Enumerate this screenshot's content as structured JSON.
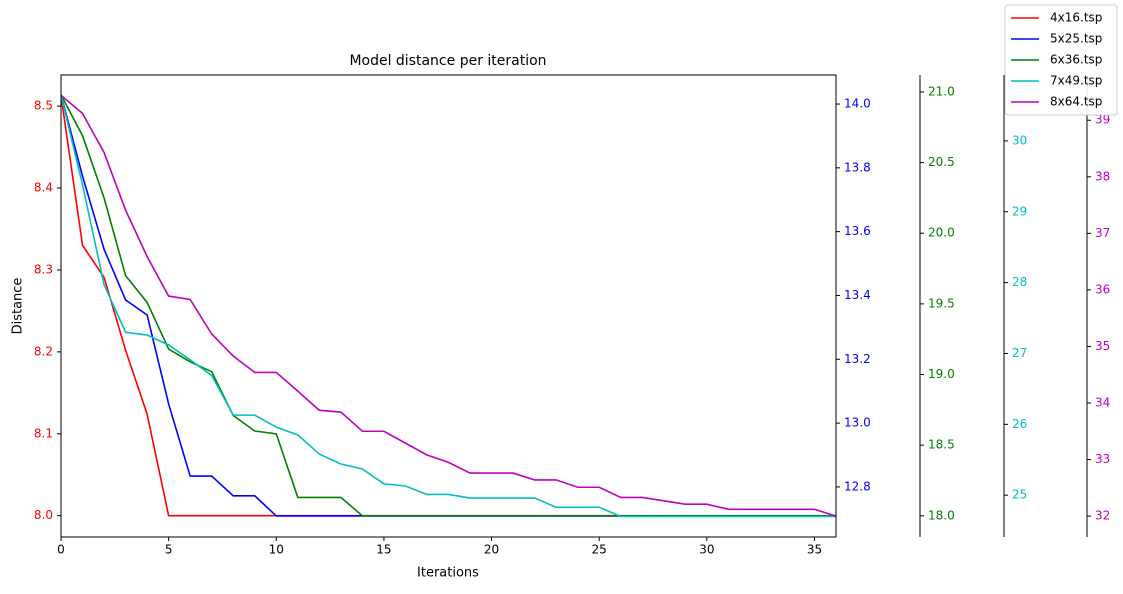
{
  "chart_data": {
    "type": "line",
    "title": "Model distance per iteration",
    "xlabel": "Iterations",
    "ylabel": "Distance",
    "x": [
      0,
      1,
      2,
      3,
      4,
      5,
      6,
      7,
      8,
      9,
      10,
      11,
      12,
      13,
      14,
      15,
      16,
      17,
      18,
      19,
      20,
      21,
      22,
      23,
      24,
      25,
      26,
      27,
      28,
      29,
      30,
      31,
      32,
      33,
      34,
      35,
      36
    ],
    "xlim": [
      0,
      36
    ],
    "xticks": [
      0,
      5,
      10,
      15,
      20,
      25,
      30,
      35
    ],
    "ylim": [
      7.974,
      8.538
    ],
    "yticks": [
      {
        "value": 8.0,
        "label": "8.0"
      },
      8.1,
      8.2,
      8.3,
      8.4,
      8.5
    ],
    "legend": "upper right",
    "series": [
      {
        "name": "4x16.tsp",
        "color": "#ff0000",
        "axis": "y",
        "values": [
          8.513,
          8.33,
          8.291,
          8.202,
          8.124,
          8.0,
          8.0,
          8.0,
          8.0,
          8.0,
          8.0,
          8.0,
          8.0,
          8.0,
          8.0,
          8.0,
          8.0,
          8.0,
          8.0,
          8.0,
          8.0,
          8.0,
          8.0,
          8.0,
          8.0,
          8.0,
          8.0,
          8.0,
          8.0,
          8.0,
          8.0,
          8.0,
          8.0,
          8.0,
          8.0,
          8.0,
          8.0
        ]
      },
      {
        "name": "5x25.tsp",
        "color": "#0000ff",
        "axis": "y2",
        "ylim": [
          12.643,
          14.091
        ],
        "yticks": [
          12.8,
          {
            "value": 13.0,
            "label": "13.0"
          },
          13.2,
          13.4,
          13.6,
          13.8,
          {
            "value": 14.0,
            "label": "14.0"
          }
        ],
        "values": [
          14.029,
          13.774,
          13.545,
          13.386,
          13.339,
          13.06,
          12.834,
          12.834,
          12.772,
          12.772,
          12.709,
          12.709,
          12.709,
          12.709,
          12.709,
          12.709,
          12.709,
          12.709,
          12.709,
          12.709,
          12.709,
          12.709,
          12.709,
          12.709,
          12.709,
          12.709,
          12.709,
          12.709,
          12.709,
          12.709,
          12.709,
          12.709,
          12.709,
          12.709,
          12.709,
          12.709,
          12.709
        ]
      },
      {
        "name": "6x36.tsp",
        "color": "#008000",
        "axis": "y3",
        "ylim": [
          17.85,
          21.12
        ],
        "yticks": [
          {
            "value": 18.0,
            "label": "18.0"
          },
          18.5,
          {
            "value": 19.0,
            "label": "19.0"
          },
          19.5,
          {
            "value": 20.0,
            "label": "20.0"
          },
          20.5,
          {
            "value": 21.0,
            "label": "21.0"
          }
        ],
        "values": [
          20.98,
          20.69,
          20.25,
          19.7,
          19.51,
          19.18,
          19.09,
          19.02,
          18.71,
          18.6,
          18.58,
          18.13,
          18.13,
          18.13,
          18.0,
          18.0,
          18.0,
          18.0,
          18.0,
          18.0,
          18.0,
          18.0,
          18.0,
          18.0,
          18.0,
          18.0,
          18.0,
          18.0,
          18.0,
          18.0,
          18.0,
          18.0,
          18.0,
          18.0,
          18.0,
          18.0,
          18.0
        ]
      },
      {
        "name": "7x49.tsp",
        "color": "#00bfbf",
        "axis": "y4",
        "ylim": [
          24.41,
          30.93
        ],
        "yticks": [
          25,
          26,
          27,
          28,
          29,
          30
        ],
        "values": [
          30.65,
          29.38,
          27.97,
          27.3,
          27.26,
          27.12,
          26.91,
          26.69,
          26.13,
          26.13,
          25.96,
          25.85,
          25.58,
          25.44,
          25.37,
          25.16,
          25.13,
          25.01,
          25.01,
          24.96,
          24.96,
          24.96,
          24.96,
          24.83,
          24.83,
          24.83,
          24.7,
          24.7,
          24.7,
          24.7,
          24.7,
          24.7,
          24.7,
          24.7,
          24.7,
          24.7,
          24.7
        ]
      },
      {
        "name": "8x64.tsp",
        "color": "#bf00bf",
        "axis": "y5",
        "ylim": [
          31.63,
          39.8
        ],
        "yticks": [
          32,
          33,
          34,
          35,
          36,
          37,
          38,
          39
        ],
        "values": [
          39.44,
          39.12,
          38.43,
          37.41,
          36.59,
          35.89,
          35.83,
          35.22,
          34.83,
          34.54,
          34.54,
          34.21,
          33.87,
          33.84,
          33.5,
          33.5,
          33.29,
          33.08,
          32.95,
          32.76,
          32.76,
          32.76,
          32.64,
          32.64,
          32.51,
          32.51,
          32.33,
          32.33,
          32.27,
          32.21,
          32.21,
          32.12,
          32.12,
          32.12,
          32.12,
          32.12,
          32.0
        ]
      }
    ]
  }
}
